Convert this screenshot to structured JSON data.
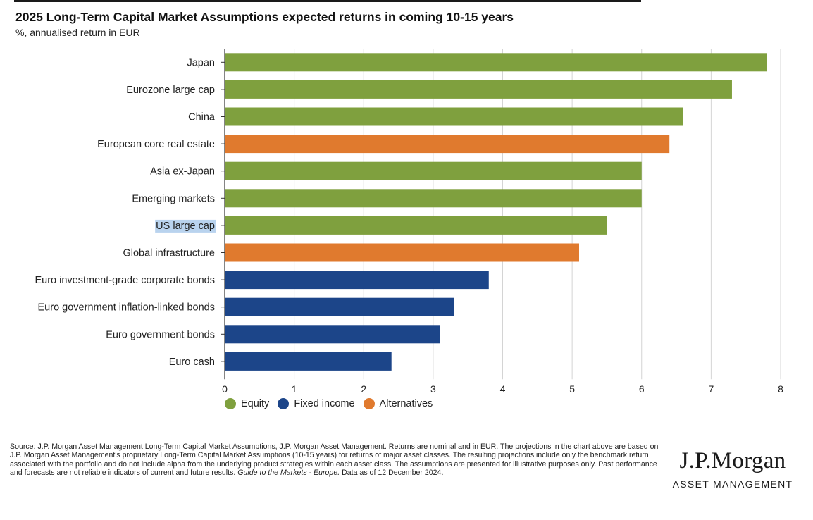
{
  "title": "2025 Long-Term Capital Market Assumptions expected returns in coming 10-15 years",
  "subtitle": "%, annualised return in EUR",
  "colors": {
    "Equity": "#7fa03e",
    "Fixed income": "#1c4589",
    "Alternatives": "#e07a2e"
  },
  "chart_data": {
    "type": "bar",
    "orientation": "horizontal",
    "categories": [
      "Japan",
      "Eurozone large cap",
      "China",
      "European core real estate",
      "Asia ex-Japan",
      "Emerging markets",
      "US large cap",
      "Global infrastructure",
      "Euro investment-grade corporate bonds",
      "Euro government inflation-linked bonds",
      "Euro government bonds",
      "Euro cash"
    ],
    "values": [
      7.8,
      7.3,
      6.6,
      6.4,
      6.0,
      6.0,
      5.5,
      5.1,
      3.8,
      3.3,
      3.1,
      2.4
    ],
    "groups": [
      "Equity",
      "Equity",
      "Equity",
      "Alternatives",
      "Equity",
      "Equity",
      "Equity",
      "Alternatives",
      "Fixed income",
      "Fixed income",
      "Fixed income",
      "Fixed income"
    ],
    "xlim": [
      0,
      8
    ],
    "xticks": [
      0,
      1,
      2,
      3,
      4,
      5,
      6,
      7,
      8
    ],
    "grid": true,
    "legend": {
      "placement": "bottom-left",
      "items": [
        "Equity",
        "Fixed income",
        "Alternatives"
      ]
    },
    "highlighted_category": "US large cap"
  },
  "source_note": {
    "text": "Source: J.P. Morgan Asset Management Long-Term Capital Market Assumptions, J.P. Morgan Asset Management. Returns are nominal and in EUR. The projections in the chart above are based on J.P. Morgan Asset Management's proprietary Long-Term Capital Market Assumptions (10-15 years) for returns of major asset classes. The resulting projections include only the benchmark return associated with the portfolio and do not include alpha from the underlying product strategies within each asset class. The assumptions are presented for illustrative purposes only. Past performance and forecasts are not reliable indicators of current and future results.",
    "publication": "Guide to the Markets - Europe.",
    "date_note": "Data as of 12 December 2024."
  },
  "logo": {
    "main": "J.P.Morgan",
    "sub": "ASSET MANAGEMENT"
  }
}
